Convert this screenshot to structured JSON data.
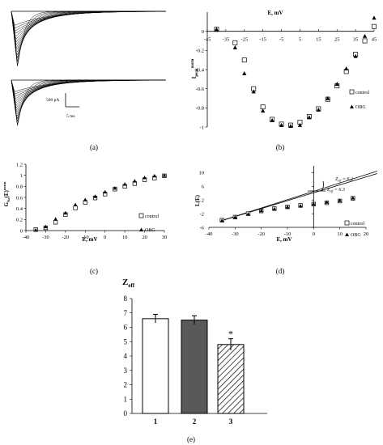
{
  "panel_captions": [
    "(a)",
    "(b)",
    "(c)",
    "(d)",
    "(e)"
  ],
  "panel_a": {
    "scale_current": "500 pA",
    "scale_time": "5 ms"
  },
  "chart_data": [
    {
      "panel": "b",
      "type": "scatter",
      "xlabel": "E, mV",
      "ylabel": "I_peak^norm",
      "xlim": [
        -45,
        45
      ],
      "ylim": [
        -1,
        0.2
      ],
      "x_ticks": [
        "-45",
        "-35",
        "-25",
        "-15",
        "-5",
        "5",
        "15",
        "25",
        "35",
        "45"
      ],
      "y_ticks": [
        "0",
        "-0.2",
        "-0.4",
        "-0.6",
        "-0.8",
        "-1"
      ],
      "series": [
        {
          "name": "control",
          "marker": "square-open",
          "x": [
            -40,
            -30,
            -25,
            -20,
            -15,
            -10,
            -5,
            0,
            5,
            10,
            15,
            20,
            25,
            30,
            35,
            40,
            45
          ],
          "y": [
            0.02,
            -0.12,
            -0.3,
            -0.6,
            -0.79,
            -0.92,
            -0.97,
            -0.98,
            -0.95,
            -0.89,
            -0.81,
            -0.71,
            -0.57,
            -0.42,
            -0.24,
            -0.1,
            0.05
          ]
        },
        {
          "name": "OBG",
          "marker": "triangle-filled",
          "x": [
            -40,
            -30,
            -25,
            -20,
            -15,
            -10,
            -5,
            0,
            5,
            10,
            15,
            20,
            25,
            30,
            35,
            40,
            45
          ],
          "y": [
            0.02,
            -0.17,
            -0.44,
            -0.63,
            -0.83,
            -0.93,
            -0.98,
            -0.99,
            -0.98,
            -0.9,
            -0.82,
            -0.7,
            -0.55,
            -0.39,
            -0.26,
            -0.05,
            0.14
          ]
        }
      ]
    },
    {
      "panel": "c",
      "type": "scatter",
      "xlabel": "E, mV",
      "ylabel": "G_Na(E)^norm",
      "xlim": [
        -40,
        30
      ],
      "ylim": [
        0,
        1.2
      ],
      "x_ticks": [
        "-40",
        "-30",
        "-20",
        "-10",
        "0",
        "10",
        "20",
        "30"
      ],
      "y_ticks": [
        "0",
        "0.2",
        "0.4",
        "0.6",
        "0.8",
        "1",
        "1.2"
      ],
      "series": [
        {
          "name": "control",
          "marker": "square-open",
          "x": [
            -35,
            -30,
            -25,
            -20,
            -15,
            -10,
            -5,
            0,
            5,
            10,
            15,
            20,
            25,
            30
          ],
          "y": [
            0.02,
            0.05,
            0.15,
            0.29,
            0.41,
            0.51,
            0.59,
            0.66,
            0.75,
            0.8,
            0.85,
            0.92,
            0.95,
            0.99
          ]
        },
        {
          "name": "OBG",
          "marker": "triangle-filled",
          "x": [
            -35,
            -30,
            -25,
            -20,
            -15,
            -10,
            -5,
            0,
            5,
            10,
            15,
            20,
            25,
            30
          ],
          "y": [
            0.01,
            0.07,
            0.21,
            0.32,
            0.47,
            0.56,
            0.62,
            0.7,
            0.77,
            0.84,
            0.9,
            0.96,
            0.99,
            1.0
          ]
        }
      ]
    },
    {
      "panel": "d",
      "type": "scatter",
      "xlabel": "E, mV",
      "ylabel": "L(E)",
      "xlim": [
        -40,
        20
      ],
      "ylim": [
        -6,
        12
      ],
      "x_ticks": [
        "-40",
        "-30",
        "-20",
        "-10",
        "0",
        "10",
        "20"
      ],
      "y_ticks": [
        "10",
        "6",
        "2",
        "-2",
        "-6"
      ],
      "annotations": [
        "Z_eff = 6.2",
        "Z_eff = 6.3"
      ],
      "lines": [
        {
          "name": "Z_eff = 6.2",
          "x": [
            -35,
            15
          ],
          "y": [
            -4,
            8.2
          ]
        },
        {
          "name": "Z_eff = 6.3",
          "x": [
            -35,
            15
          ],
          "y": [
            -4,
            7.6
          ]
        }
      ],
      "series": [
        {
          "name": "control",
          "marker": "square-open",
          "x": [
            -35,
            -30,
            -25,
            -20,
            -15,
            -10,
            -5,
            0,
            5,
            10,
            15
          ],
          "y": [
            -3.9,
            -3.0,
            -2.0,
            -1.2,
            -0.5,
            0.0,
            0.4,
            0.8,
            1.2,
            1.7,
            2.5
          ]
        },
        {
          "name": "OBG",
          "marker": "triangle-filled",
          "x": [
            -35,
            -30,
            -25,
            -20,
            -15,
            -10,
            -5,
            0,
            5,
            10,
            15
          ],
          "y": [
            -4.0,
            -3.0,
            -2.1,
            -1.1,
            -0.6,
            0.0,
            0.3,
            0.9,
            1.4,
            1.9,
            2.6
          ]
        }
      ]
    },
    {
      "panel": "e",
      "type": "bar",
      "title": "Z_eff",
      "categories": [
        "1",
        "2",
        "3"
      ],
      "values": [
        6.6,
        6.5,
        4.8
      ],
      "errors": [
        0.3,
        0.3,
        0.4
      ],
      "bar_styles": [
        "white",
        "dark-gray",
        "hatched"
      ],
      "significance": [
        "",
        "",
        "*"
      ],
      "ylim": [
        0,
        8
      ],
      "y_ticks": [
        "0",
        "1",
        "2",
        "3",
        "4",
        "5",
        "6",
        "7",
        "8"
      ]
    }
  ],
  "colors": {
    "axis": "#000000",
    "bar_dark": "#595959",
    "grid": "none"
  }
}
